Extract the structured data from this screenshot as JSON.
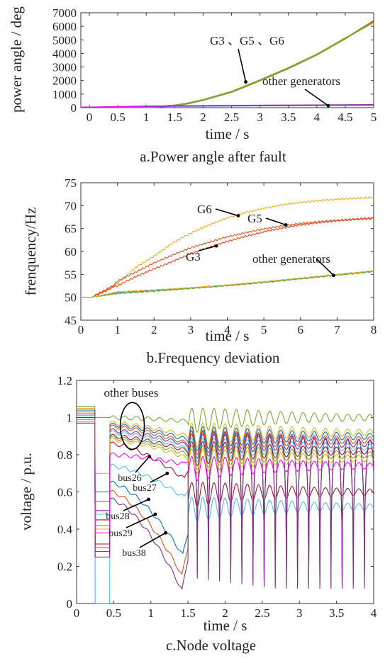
{
  "chart_data": [
    {
      "type": "line",
      "caption": "a.Power angle after fault",
      "xlabel": "time / s",
      "ylabel": "power angle / deg",
      "xlim": [
        -0.15,
        5
      ],
      "ylim": [
        0,
        7000
      ],
      "xticks": [
        0,
        0.5,
        1,
        1.5,
        2,
        2.5,
        3,
        3.5,
        4,
        4.5,
        5
      ],
      "xtick_labels": [
        "0",
        "0.5",
        "1",
        "1.5",
        "2",
        "2.5",
        "3",
        "3.5",
        "4",
        "4.5",
        "5"
      ],
      "yticks": [
        0,
        1000,
        2000,
        3000,
        4000,
        5000,
        6000,
        7000
      ],
      "ytick_labels": [
        "0",
        "1000",
        "2000",
        "3000",
        "4000",
        "5000",
        "6000",
        "7000"
      ],
      "series": [
        {
          "group": "G3 、G5 、G6",
          "color": "#d95319",
          "x": [
            -0.15,
            0.5,
            1.0,
            1.25,
            1.5,
            1.75,
            2.0,
            2.5,
            3.0,
            3.5,
            4.0,
            4.5,
            5.0
          ],
          "y": [
            0,
            5,
            30,
            80,
            150,
            320,
            560,
            1150,
            2000,
            2900,
            3900,
            5100,
            6400
          ]
        },
        {
          "group": "G3 、G5 、G6",
          "color": "#77ac30",
          "x": [
            -0.15,
            0.5,
            1.0,
            1.25,
            1.5,
            1.75,
            2.0,
            2.5,
            3.0,
            3.5,
            4.0,
            4.5,
            5.0
          ],
          "y": [
            0,
            6,
            35,
            90,
            170,
            340,
            580,
            1180,
            2030,
            2930,
            3930,
            5130,
            6300
          ]
        },
        {
          "group": "other generators",
          "color": "#7e2f8e",
          "x": [
            -0.15,
            1,
            2,
            3,
            4,
            5
          ],
          "y": [
            40,
            120,
            160,
            190,
            210,
            230
          ]
        },
        {
          "group": "other generators",
          "color": "#0072bd",
          "x": [
            -0.15,
            1,
            2,
            3,
            4,
            5
          ],
          "y": [
            20,
            80,
            110,
            130,
            150,
            170
          ]
        },
        {
          "group": "other generators",
          "color": "#ff00ff",
          "x": [
            -0.15,
            1,
            2,
            3,
            4,
            5
          ],
          "y": [
            30,
            100,
            130,
            150,
            170,
            190
          ]
        }
      ],
      "annotations": [
        {
          "text": "G3 、G5 、G6",
          "point": [
            2.75,
            1900
          ]
        },
        {
          "text": "other generators",
          "point": [
            4.2,
            150
          ]
        }
      ]
    },
    {
      "type": "line",
      "caption": "b.Frequency deviation",
      "xlabel": "time / s",
      "ylabel": "frenquency/Hz",
      "xlim": [
        0,
        8
      ],
      "ylim": [
        45,
        75
      ],
      "xticks": [
        0,
        1,
        2,
        3,
        4,
        5,
        6,
        7,
        8
      ],
      "xtick_labels": [
        "0",
        "1",
        "2",
        "3",
        "4",
        "5",
        "6",
        "7",
        "8"
      ],
      "yticks": [
        45,
        50,
        55,
        60,
        65,
        70,
        75
      ],
      "ytick_labels": [
        "45",
        "50",
        "55",
        "60",
        "65",
        "70",
        "75"
      ],
      "series": [
        {
          "name": "G6",
          "color": "#edb120",
          "x": [
            0,
            0.3,
            0.8,
            1.0,
            1.5,
            2.0,
            2.5,
            3.0,
            3.5,
            4.0,
            4.5,
            5.0,
            5.5,
            6.0,
            6.5,
            7.0,
            7.5,
            8.0
          ],
          "y": [
            50,
            50,
            52.0,
            53.0,
            56.5,
            59.0,
            61.8,
            64.0,
            65.8,
            67.3,
            68.5,
            69.4,
            70.2,
            70.7,
            71.1,
            71.4,
            71.6,
            71.8
          ]
        },
        {
          "name": "G5",
          "color": "#d95319",
          "x": [
            0,
            0.3,
            0.8,
            1.0,
            1.5,
            2.0,
            2.5,
            3.0,
            3.5,
            4.0,
            4.5,
            5.0,
            5.5,
            6.0,
            6.5,
            7.0,
            7.5,
            8.0
          ],
          "y": [
            50,
            50,
            51.8,
            53.5,
            55.5,
            57.5,
            59.2,
            60.8,
            62.0,
            63.2,
            64.1,
            64.9,
            65.6,
            66.1,
            66.5,
            66.8,
            67.1,
            67.3
          ]
        },
        {
          "name": "G3",
          "color": "#e8431a",
          "x": [
            0,
            0.3,
            0.8,
            1.0,
            1.5,
            2.0,
            2.5,
            3.0,
            3.5,
            4.0,
            4.5,
            5.0,
            5.5,
            6.0,
            6.5,
            7.0,
            7.5,
            8.0
          ],
          "y": [
            50,
            50,
            52.2,
            52.5,
            54.5,
            56.2,
            57.8,
            59.5,
            60.9,
            62.2,
            63.3,
            64.3,
            65.1,
            65.8,
            66.3,
            66.7,
            67.0,
            67.2
          ]
        },
        {
          "group": "other generators",
          "color": "#0072bd",
          "x": [
            0,
            0.3,
            1,
            2,
            3,
            4,
            5,
            6,
            7,
            8
          ],
          "y": [
            50,
            50,
            51.0,
            51.5,
            52.0,
            52.6,
            53.3,
            54.1,
            54.9,
            55.7
          ]
        },
        {
          "group": "other generators",
          "color": "#77ac30",
          "x": [
            0,
            0.3,
            1,
            2,
            3,
            4,
            5,
            6,
            7,
            8
          ],
          "y": [
            50,
            50,
            50.8,
            51.3,
            51.9,
            52.5,
            53.2,
            54.0,
            54.8,
            55.6
          ]
        },
        {
          "group": "other generators",
          "color": "#edb120",
          "x": [
            0,
            0.3,
            1,
            2,
            3,
            4,
            5,
            6,
            7,
            8
          ],
          "y": [
            50,
            50,
            51.2,
            51.6,
            52.1,
            52.7,
            53.4,
            54.2,
            55.0,
            55.8
          ]
        }
      ],
      "annotations": [
        {
          "text": "G6",
          "point": [
            4.3,
            67.8
          ]
        },
        {
          "text": "G5",
          "point": [
            5.6,
            65.8
          ]
        },
        {
          "text": "G3",
          "point": [
            3.7,
            61.2
          ]
        },
        {
          "text": "other generators",
          "point": [
            6.9,
            54.8
          ]
        }
      ]
    },
    {
      "type": "line",
      "caption": "c.Node voltage",
      "xlabel": "time / s",
      "ylabel": "voltage / p.u.",
      "xlim": [
        0,
        4
      ],
      "ylim": [
        0,
        1.2
      ],
      "xticks": [
        0,
        0.5,
        1,
        1.5,
        2,
        2.5,
        3,
        3.5,
        4
      ],
      "xtick_labels": [
        "0",
        "0.5",
        "1",
        "1.5",
        "2",
        "2.5",
        "3",
        "3.5",
        "4"
      ],
      "yticks": [
        0,
        0.2,
        0.4,
        0.6,
        0.8,
        1,
        1.2
      ],
      "ytick_labels": [
        "0",
        "0.2",
        "0.4",
        "0.6",
        "0.8",
        "1",
        "1.2"
      ],
      "fault_interval_s": [
        0.25,
        0.45
      ],
      "oscillation_period_s": 0.15,
      "series": [
        {
          "name": "bus26",
          "color": "#a2142f",
          "pre": 1.01,
          "fault": 0.32,
          "post": 0.86,
          "dip_at": 1.45,
          "dip": 0.67,
          "end": 0.58
        },
        {
          "name": "bus27",
          "color": "#4dbeee",
          "pre": 1.0,
          "fault": 0.0,
          "post": 0.74,
          "dip_at": 1.45,
          "dip": 0.57,
          "end": 0.5
        },
        {
          "name": "bus28",
          "color": "#0072bd",
          "pre": 0.99,
          "fault": 0.28,
          "post": 0.65,
          "dip_at": 1.43,
          "dip": 0.26,
          "end": 0.12
        },
        {
          "name": "bus29",
          "color": "#d95319",
          "pre": 0.98,
          "fault": 0.3,
          "post": 0.6,
          "dip_at": 1.42,
          "dip": 0.15,
          "end": 0.1
        },
        {
          "name": "bus38",
          "color": "#7e2f8e",
          "pre": 0.97,
          "fault": 0.25,
          "post": 0.56,
          "dip_at": 1.42,
          "dip": 0.07,
          "end": 0.08
        },
        {
          "group": "other buses",
          "color": "#77ac30",
          "pre": 1.06,
          "fault": 1.0,
          "post": 1.0,
          "dip_at": 1.5,
          "dip": 0.98,
          "end": 0.98
        },
        {
          "group": "other buses",
          "color": "#edb120",
          "pre": 1.05,
          "fault": 0.7,
          "post": 0.97,
          "dip_at": 1.5,
          "dip": 0.9,
          "end": 0.9
        },
        {
          "group": "other buses",
          "color": "#0072bd",
          "pre": 1.04,
          "fault": 0.6,
          "post": 0.96,
          "dip_at": 1.5,
          "dip": 0.88,
          "end": 0.88
        },
        {
          "group": "other buses",
          "color": "#d95319",
          "pre": 1.03,
          "fault": 0.55,
          "post": 0.95,
          "dip_at": 1.5,
          "dip": 0.86,
          "end": 0.86
        },
        {
          "group": "other buses",
          "color": "#7e2f8e",
          "pre": 1.02,
          "fault": 0.5,
          "post": 0.93,
          "dip_at": 1.5,
          "dip": 0.85,
          "end": 0.84
        },
        {
          "group": "other buses",
          "color": "#4dbeee",
          "pre": 1.01,
          "fault": 0.48,
          "post": 0.92,
          "dip_at": 1.5,
          "dip": 0.83,
          "end": 0.82
        },
        {
          "group": "other buses",
          "color": "#a2142f",
          "pre": 1.0,
          "fault": 0.45,
          "post": 0.9,
          "dip_at": 1.5,
          "dip": 0.82,
          "end": 0.8
        },
        {
          "group": "other buses",
          "color": "#77ac30",
          "pre": 0.99,
          "fault": 0.42,
          "post": 0.89,
          "dip_at": 1.5,
          "dip": 0.8,
          "end": 0.78
        },
        {
          "group": "other buses",
          "color": "#edb120",
          "pre": 0.98,
          "fault": 0.4,
          "post": 0.88,
          "dip_at": 1.5,
          "dip": 0.78,
          "end": 0.76
        },
        {
          "group": "other buses",
          "color": "#ff00ff",
          "pre": 0.97,
          "fault": 0.38,
          "post": 0.8,
          "dip_at": 1.45,
          "dip": 0.75,
          "end": 0.72
        }
      ],
      "annotations": [
        {
          "text": "other buses",
          "point": [
            0.78,
            0.96
          ]
        },
        {
          "text": "bus26",
          "point": [
            0.98,
            0.79
          ]
        },
        {
          "text": "bus27",
          "point": [
            1.22,
            0.7
          ]
        },
        {
          "text": "bus28",
          "point": [
            0.97,
            0.56
          ]
        },
        {
          "text": "bus29",
          "point": [
            1.06,
            0.48
          ]
        },
        {
          "text": "bus38",
          "point": [
            1.2,
            0.38
          ]
        }
      ]
    }
  ]
}
